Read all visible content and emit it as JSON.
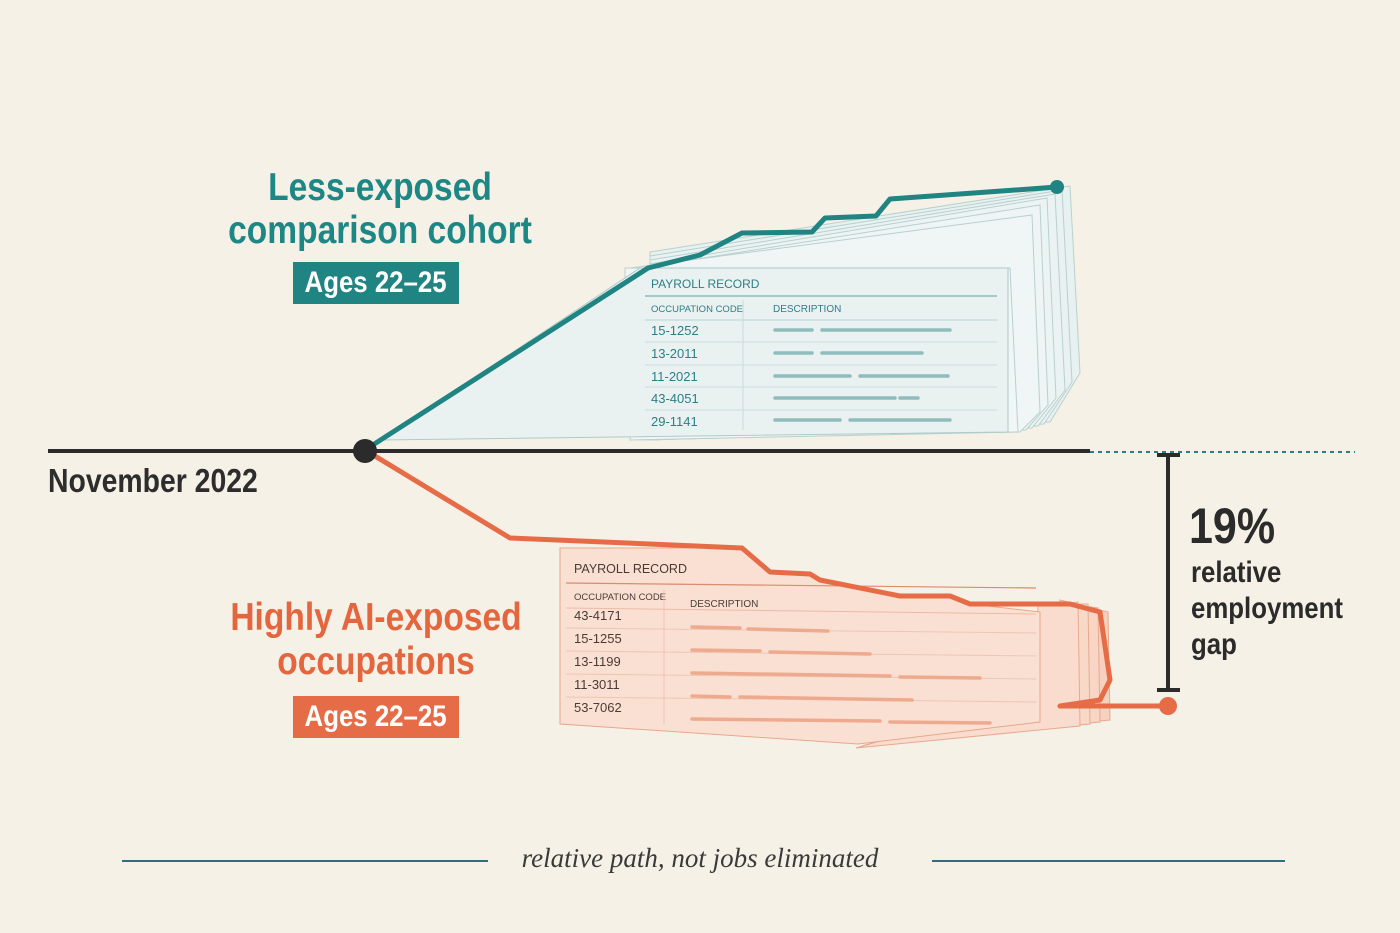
{
  "timeline": {
    "start_label": "November 2022"
  },
  "cohorts": {
    "less_exposed": {
      "title_line1": "Less-exposed",
      "title_line2": "comparison cohort",
      "age_badge": "Ages 22–25",
      "color": "#1f8482"
    },
    "highly_exposed": {
      "title_line1": "Highly AI-exposed",
      "title_line2": "occupations",
      "age_badge": "Ages 22–25",
      "color": "#e56c47"
    }
  },
  "gap": {
    "value": "19%",
    "line1": "relative",
    "line2": "employment",
    "line3": "gap"
  },
  "records": {
    "teal": {
      "header": "PAYROLL RECORD",
      "col_code": "OCCUPATION CODE",
      "col_desc": "DESCRIPTION",
      "codes": [
        "15-1252",
        "13-2011",
        "11-2021",
        "43-4051",
        "29-1141"
      ]
    },
    "coral": {
      "header": "PAYROLL RECORD",
      "col_code": "OCCUPATION CODE",
      "col_desc": "DESCRIPTION",
      "codes": [
        "43-4171",
        "15-1255",
        "13-1199",
        "11-3011",
        "53-7062"
      ]
    }
  },
  "footnote": "relative path, not jobs eliminated",
  "colors": {
    "background": "#f6f1e6",
    "teal": "#1f8482",
    "coral": "#e56c47",
    "axis": "#2b2b2b"
  }
}
